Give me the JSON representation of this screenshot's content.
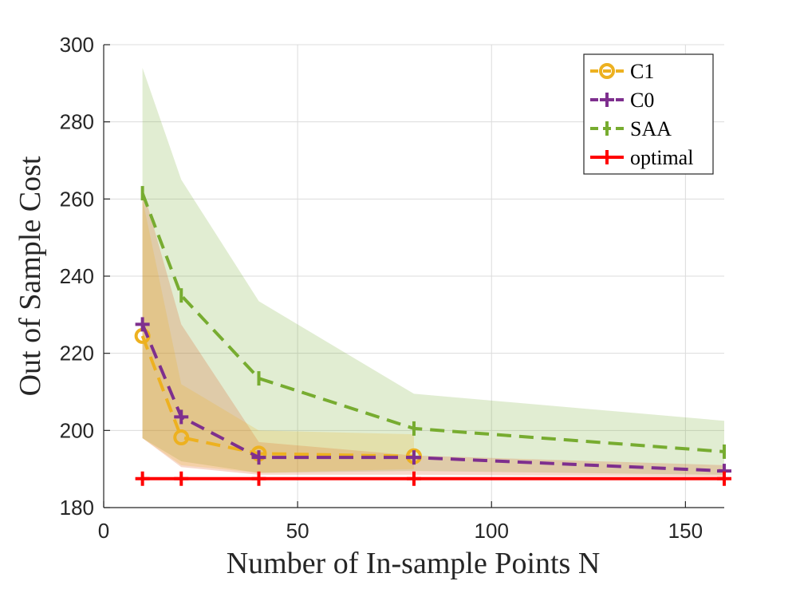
{
  "chart_data": {
    "type": "line",
    "title": "",
    "xlabel": "Number of In-sample Points N",
    "ylabel": "Out of Sample Cost",
    "xlim": [
      0,
      160
    ],
    "ylim": [
      180,
      300
    ],
    "xticks": [
      0,
      50,
      100,
      150
    ],
    "yticks": [
      180,
      200,
      220,
      240,
      260,
      280,
      300
    ],
    "grid": true,
    "legend_position": "top-right",
    "x": [
      10,
      20,
      40,
      80,
      160
    ],
    "series": [
      {
        "name": "C1",
        "marker": "circle",
        "line_style": "dashed",
        "color": "#EDB120",
        "values": [
          224.5,
          198.2,
          194.0,
          193.3,
          null
        ],
        "band_lower": [
          198.0,
          191.0,
          189.0,
          190.0,
          null
        ],
        "band_upper": [
          260.0,
          212.0,
          200.0,
          199.0,
          null
        ]
      },
      {
        "name": "C0",
        "marker": "plus",
        "line_style": "dashed",
        "color": "#7E2F8E",
        "values": [
          227.5,
          203.5,
          193.0,
          193.0,
          189.5
        ],
        "band_lower": [
          198.0,
          190.5,
          188.5,
          188.5,
          188.0
        ],
        "band_upper": [
          263.0,
          227.5,
          197.0,
          193.5,
          191.0
        ]
      },
      {
        "name": "SAA",
        "marker": "vline",
        "line_style": "dashed",
        "color": "#77AC30",
        "values": [
          261.5,
          235.0,
          213.5,
          200.5,
          194.5
        ],
        "band_lower": [
          198.0,
          192.0,
          189.0,
          189.5,
          188.5
        ],
        "band_upper": [
          294.0,
          265.0,
          233.5,
          209.5,
          202.5
        ]
      },
      {
        "name": "optimal",
        "marker": "plus",
        "line_style": "solid",
        "color": "#FF0000",
        "values": [
          187.5,
          187.5,
          187.5,
          187.5,
          187.5
        ]
      }
    ],
    "band_colors": {
      "C1": "#EDB120",
      "C0": "#D95319",
      "SAA": "#77AC30"
    }
  }
}
